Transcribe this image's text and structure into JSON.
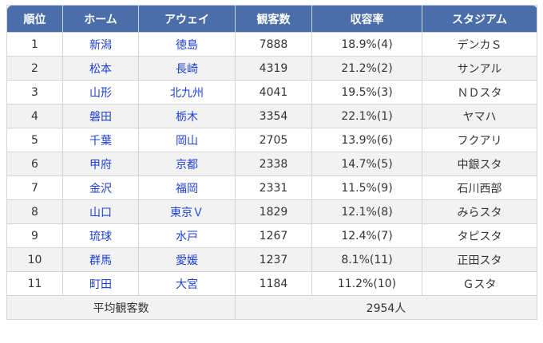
{
  "table": {
    "headers": [
      "順位",
      "ホーム",
      "アウェイ",
      "観客数",
      "収容率",
      "スタジアム"
    ],
    "rows": [
      {
        "rank": "1",
        "home": "新潟",
        "away": "徳島",
        "attendance": "7888",
        "rate": "18.9%(4)",
        "stadium": "デンカＳ"
      },
      {
        "rank": "2",
        "home": "松本",
        "away": "長崎",
        "attendance": "4319",
        "rate": "21.2%(2)",
        "stadium": "サンアル"
      },
      {
        "rank": "3",
        "home": "山形",
        "away": "北九州",
        "attendance": "4041",
        "rate": "19.5%(3)",
        "stadium": "ＮＤスタ"
      },
      {
        "rank": "4",
        "home": "磐田",
        "away": "栃木",
        "attendance": "3354",
        "rate": "22.1%(1)",
        "stadium": "ヤマハ"
      },
      {
        "rank": "5",
        "home": "千葉",
        "away": "岡山",
        "attendance": "2705",
        "rate": "13.9%(6)",
        "stadium": "フクアリ"
      },
      {
        "rank": "6",
        "home": "甲府",
        "away": "京都",
        "attendance": "2338",
        "rate": "14.7%(5)",
        "stadium": "中銀スタ"
      },
      {
        "rank": "7",
        "home": "金沢",
        "away": "福岡",
        "attendance": "2331",
        "rate": "11.5%(9)",
        "stadium": "石川西部"
      },
      {
        "rank": "8",
        "home": "山口",
        "away": "東京Ｖ",
        "attendance": "1829",
        "rate": "12.1%(8)",
        "stadium": "みらスタ"
      },
      {
        "rank": "9",
        "home": "琉球",
        "away": "水戸",
        "attendance": "1267",
        "rate": "12.4%(7)",
        "stadium": "タピスタ"
      },
      {
        "rank": "10",
        "home": "群馬",
        "away": "愛媛",
        "attendance": "1237",
        "rate": "8.1%(11)",
        "stadium": "正田スタ"
      },
      {
        "rank": "11",
        "home": "町田",
        "away": "大宮",
        "attendance": "1184",
        "rate": "11.2%(10)",
        "stadium": "Ｇスタ"
      }
    ],
    "footer": {
      "label": "平均観客数",
      "value": "2954人"
    }
  },
  "colors": {
    "header_bg": "#4a6ea9",
    "link": "#1c3fd4",
    "stripe": "#f2f2f2"
  }
}
